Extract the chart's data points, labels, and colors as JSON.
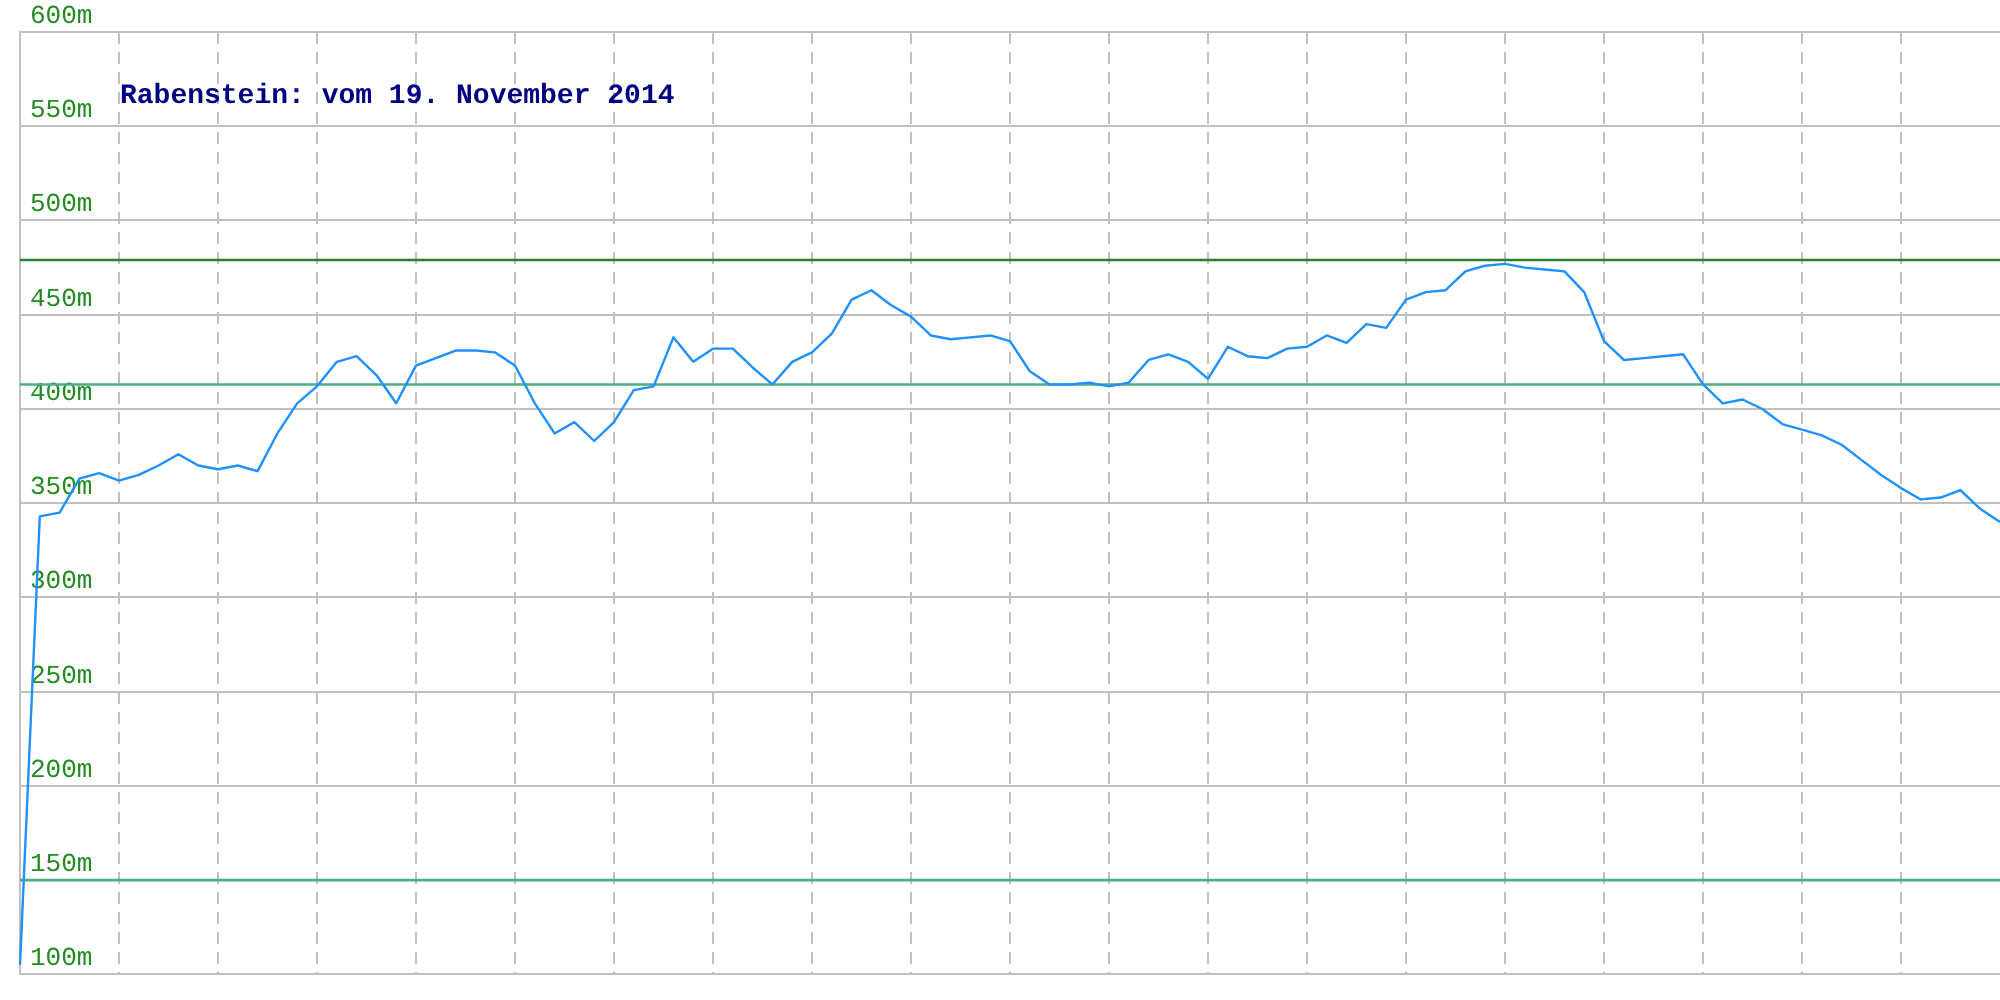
{
  "chart_data": {
    "type": "line",
    "title": "Rabenstein: vom 19. November 2014",
    "categories": [
      null,
      null,
      null,
      null,
      null,
      null,
      null,
      null,
      null,
      null,
      null,
      null,
      null,
      null,
      null,
      null,
      null,
      null,
      null,
      null,
      null,
      null,
      null,
      null,
      null,
      null,
      null,
      null,
      null,
      null,
      null,
      null,
      null,
      null,
      null,
      null,
      null,
      null,
      null,
      null,
      null,
      null,
      null,
      null,
      null,
      null,
      null,
      null,
      null,
      null,
      null,
      null,
      null,
      null,
      null,
      null,
      null,
      null,
      null,
      null,
      null,
      null,
      null,
      null,
      null,
      null,
      null,
      null,
      null,
      null,
      null,
      null,
      null,
      null,
      null,
      null,
      null,
      null,
      null,
      null,
      null,
      null,
      null,
      null,
      null,
      null,
      null,
      null,
      null,
      null,
      null,
      null,
      null,
      null,
      null,
      null,
      null,
      null,
      null,
      null,
      null
    ],
    "series": [
      {
        "color": "#1e90ff",
        "values": [
          105,
          343,
          345,
          363,
          366,
          362,
          365,
          370,
          376,
          370,
          368,
          370,
          367,
          387,
          403,
          412,
          425,
          428,
          418,
          403,
          423,
          427,
          431,
          431,
          430,
          423,
          403,
          387,
          393,
          383,
          393,
          410,
          412,
          438,
          425,
          432,
          432,
          422,
          413,
          425,
          430,
          440,
          458,
          463,
          455,
          449,
          439,
          437,
          438,
          439,
          436,
          420,
          413,
          413,
          414,
          412,
          414,
          426,
          429,
          425,
          416,
          433,
          428,
          427,
          432,
          433,
          439,
          435,
          445,
          443,
          458,
          462,
          463,
          473,
          476,
          477,
          475,
          474,
          473,
          462,
          436,
          426,
          427,
          428,
          429,
          413,
          403,
          405,
          400,
          392,
          389,
          386,
          381,
          373,
          365,
          358,
          352,
          353,
          357,
          347,
          340
        ]
      }
    ],
    "ylim": [
      100,
      600
    ],
    "yticks": [
      {
        "value": 100,
        "label": "100m"
      },
      {
        "value": 150,
        "label": "150m"
      },
      {
        "value": 200,
        "label": "200m"
      },
      {
        "value": 250,
        "label": "250m"
      },
      {
        "value": 300,
        "label": "300m"
      },
      {
        "value": 350,
        "label": "350m"
      },
      {
        "value": 400,
        "label": "400m"
      },
      {
        "value": 450,
        "label": "450m"
      },
      {
        "value": 500,
        "label": "500m"
      },
      {
        "value": 550,
        "label": "550m"
      },
      {
        "value": 600,
        "label": "600m"
      }
    ],
    "ref_lines": [
      {
        "axis": "y",
        "value": 479,
        "color": "#2e7d32"
      },
      {
        "axis": "y",
        "value": 413,
        "color": "#4caf82"
      },
      {
        "axis": "y",
        "value": 150,
        "color": "#4caf82"
      }
    ],
    "grid": true,
    "legend": false,
    "marker": "none",
    "line_style": "solid"
  }
}
